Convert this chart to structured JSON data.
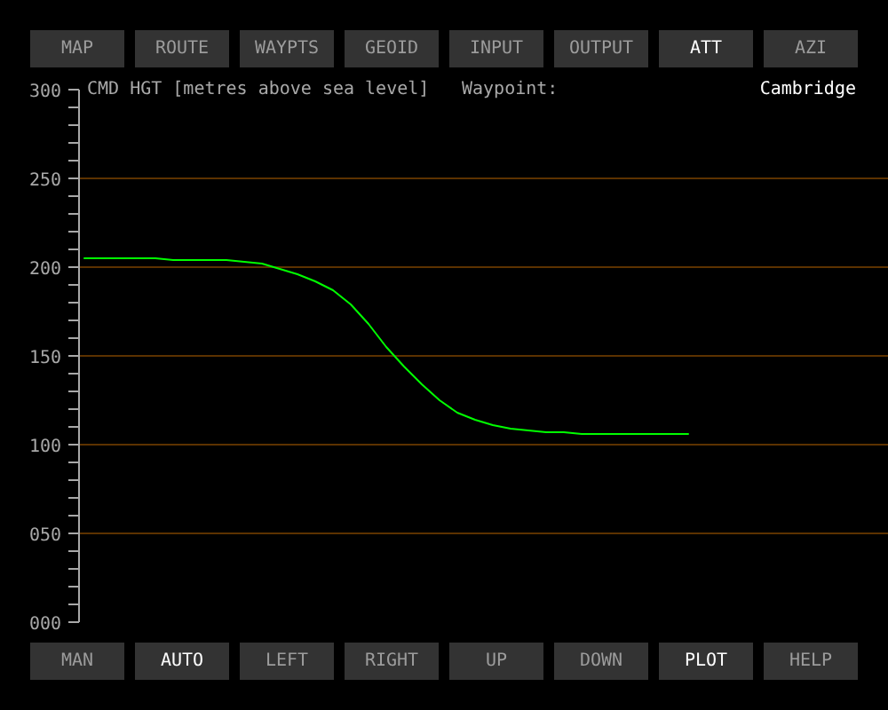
{
  "chart_data": {
    "type": "line",
    "ylabel": "CMD HGT [metres above sea level]",
    "annotations": [
      "MAP",
      "ROUTE",
      "WAYPTS",
      "GEOID",
      "INPUT",
      "OUTPUT",
      "ATT",
      "AZI",
      "Waypoint:",
      "Cambridge",
      "MAN",
      "AUTO",
      "LEFT",
      "RIGHT",
      "UP",
      "DOWN",
      "PLOT",
      "HELP"
    ],
    "categories": [
      null,
      null,
      null,
      null,
      null,
      null,
      null,
      null,
      null,
      null,
      null,
      null,
      null,
      null,
      null,
      null,
      null,
      null,
      null,
      null,
      null,
      null,
      null,
      null,
      null,
      null,
      null,
      null,
      null,
      null,
      null,
      null,
      null,
      null,
      null,
      null,
      null,
      null,
      null,
      null,
      null,
      null,
      null,
      null,
      null,
      null
    ],
    "series": [
      {
        "color": "#00ff00",
        "values": [
          205,
          205,
          205,
          205,
          205,
          204,
          204,
          204,
          204,
          203,
          202,
          199,
          196,
          192,
          187,
          179,
          168,
          155,
          144,
          134,
          125,
          118,
          114,
          111,
          109,
          108,
          107,
          107,
          106,
          106,
          106,
          106,
          106,
          106,
          106,
          null,
          null,
          null,
          null,
          null,
          null,
          null,
          null,
          null,
          null,
          null
        ]
      }
    ],
    "ylim": [
      0,
      300
    ],
    "yticks": [
      {
        "value": 0,
        "label": "000"
      },
      {
        "value": 10,
        "label": null
      },
      {
        "value": 20,
        "label": null
      },
      {
        "value": 30,
        "label": null
      },
      {
        "value": 40,
        "label": null
      },
      {
        "value": 50,
        "label": "050"
      },
      {
        "value": 60,
        "label": null
      },
      {
        "value": 70,
        "label": null
      },
      {
        "value": 80,
        "label": null
      },
      {
        "value": 90,
        "label": null
      },
      100,
      {
        "value": 110,
        "label": null
      },
      {
        "value": 120,
        "label": null
      },
      {
        "value": 130,
        "label": null
      },
      {
        "value": 140,
        "label": null
      },
      150,
      {
        "value": 160,
        "label": null
      },
      {
        "value": 170,
        "label": null
      },
      {
        "value": 180,
        "label": null
      },
      {
        "value": 190,
        "label": null
      },
      200,
      {
        "value": 210,
        "label": null
      },
      {
        "value": 220,
        "label": null
      },
      {
        "value": 230,
        "label": null
      },
      {
        "value": 240,
        "label": null
      },
      250,
      {
        "value": 260,
        "label": null
      },
      {
        "value": 270,
        "label": null
      },
      {
        "value": 280,
        "label": null
      },
      {
        "value": 290,
        "label": null
      },
      300
    ],
    "grid": "y"
  }
}
